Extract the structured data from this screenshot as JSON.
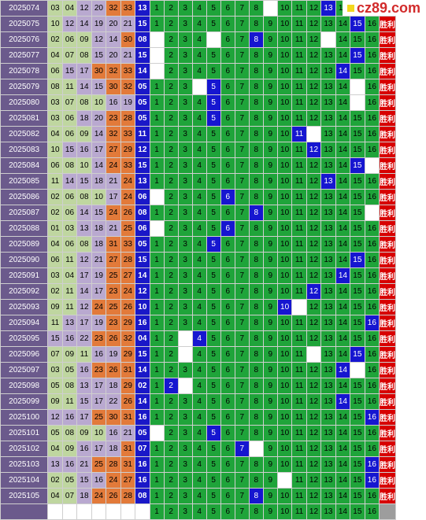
{
  "logo": {
    "text": "cz89.com"
  },
  "colors": {
    "period_bg": "#6b5a8c",
    "grid_green": "#1fa43a",
    "hit_blue": "#1616d0",
    "result_red": "#d70000"
  },
  "columns": [
    "1",
    "2",
    "3",
    "4",
    "5",
    "6",
    "7",
    "8",
    "9",
    "10",
    "11",
    "12",
    "13",
    "14",
    "15",
    "16"
  ],
  "rows": [
    {
      "period": "2025074",
      "nums": [
        "03",
        "04",
        "12",
        "20",
        "32",
        "33"
      ],
      "blue": "13",
      "hit": 13,
      "result": "胜利"
    },
    {
      "period": "2025075",
      "nums": [
        "10",
        "12",
        "14",
        "19",
        "20",
        "21"
      ],
      "blue": "15",
      "hit": 15,
      "result": "胜利"
    },
    {
      "period": "2025076",
      "nums": [
        "02",
        "06",
        "09",
        "12",
        "14",
        "30"
      ],
      "blue": "08",
      "hit": 8,
      "result": "胜利"
    },
    {
      "period": "2025077",
      "nums": [
        "04",
        "07",
        "08",
        "15",
        "20",
        "21"
      ],
      "blue": "15",
      "hit": 15,
      "result": "胜利"
    },
    {
      "period": "2025078",
      "nums": [
        "06",
        "15",
        "17",
        "30",
        "32",
        "33"
      ],
      "blue": "14",
      "hit": 14,
      "result": "胜利"
    },
    {
      "period": "2025079",
      "nums": [
        "08",
        "11",
        "14",
        "15",
        "30",
        "32"
      ],
      "blue": "05",
      "hit": 5,
      "result": "胜利"
    },
    {
      "period": "2025080",
      "nums": [
        "03",
        "07",
        "08",
        "10",
        "16",
        "19"
      ],
      "blue": "05",
      "hit": 5,
      "result": "胜利"
    },
    {
      "period": "2025081",
      "nums": [
        "03",
        "06",
        "18",
        "20",
        "23",
        "28"
      ],
      "blue": "05",
      "hit": 5,
      "result": "胜利"
    },
    {
      "period": "2025082",
      "nums": [
        "04",
        "06",
        "09",
        "14",
        "32",
        "33"
      ],
      "blue": "11",
      "hit": 11,
      "result": "胜利"
    },
    {
      "period": "2025083",
      "nums": [
        "10",
        "15",
        "16",
        "17",
        "27",
        "29"
      ],
      "blue": "12",
      "hit": 12,
      "result": "胜利"
    },
    {
      "period": "2025084",
      "nums": [
        "06",
        "08",
        "10",
        "14",
        "24",
        "33"
      ],
      "blue": "15",
      "hit": 15,
      "result": "胜利"
    },
    {
      "period": "2025085",
      "nums": [
        "11",
        "14",
        "15",
        "18",
        "21",
        "24"
      ],
      "blue": "13",
      "hit": 13,
      "result": "胜利"
    },
    {
      "period": "2025086",
      "nums": [
        "02",
        "06",
        "08",
        "10",
        "17",
        "24"
      ],
      "blue": "06",
      "hit": 6,
      "result": "胜利"
    },
    {
      "period": "2025087",
      "nums": [
        "02",
        "06",
        "14",
        "15",
        "24",
        "26"
      ],
      "blue": "08",
      "hit": 8,
      "result": "胜利"
    },
    {
      "period": "2025088",
      "nums": [
        "01",
        "03",
        "13",
        "18",
        "21",
        "25"
      ],
      "blue": "06",
      "hit": 6,
      "result": "胜利"
    },
    {
      "period": "2025089",
      "nums": [
        "04",
        "06",
        "08",
        "18",
        "31",
        "33"
      ],
      "blue": "05",
      "hit": 5,
      "result": "胜利"
    },
    {
      "period": "2025090",
      "nums": [
        "06",
        "11",
        "12",
        "21",
        "27",
        "28"
      ],
      "blue": "15",
      "hit": 15,
      "result": "胜利"
    },
    {
      "period": "2025091",
      "nums": [
        "03",
        "04",
        "17",
        "19",
        "25",
        "27"
      ],
      "blue": "14",
      "hit": 14,
      "result": "胜利"
    },
    {
      "period": "2025092",
      "nums": [
        "02",
        "11",
        "14",
        "17",
        "23",
        "24"
      ],
      "blue": "12",
      "hit": 12,
      "result": "胜利"
    },
    {
      "period": "2025093",
      "nums": [
        "09",
        "11",
        "12",
        "24",
        "25",
        "26"
      ],
      "blue": "10",
      "hit": 10,
      "result": "胜利"
    },
    {
      "period": "2025094",
      "nums": [
        "11",
        "13",
        "17",
        "19",
        "23",
        "29"
      ],
      "blue": "16",
      "hit": 16,
      "result": "胜利"
    },
    {
      "period": "2025095",
      "nums": [
        "15",
        "16",
        "22",
        "23",
        "26",
        "32"
      ],
      "blue": "04",
      "hit": 4,
      "result": "胜利"
    },
    {
      "period": "2025096",
      "nums": [
        "07",
        "09",
        "11",
        "16",
        "19",
        "29"
      ],
      "blue": "15",
      "hit": 15,
      "result": "胜利"
    },
    {
      "period": "2025097",
      "nums": [
        "03",
        "05",
        "16",
        "23",
        "26",
        "31"
      ],
      "blue": "14",
      "hit": 14,
      "result": "胜利"
    },
    {
      "period": "2025098",
      "nums": [
        "05",
        "08",
        "13",
        "17",
        "18",
        "29"
      ],
      "blue": "02",
      "hit": 2,
      "result": "胜利"
    },
    {
      "period": "2025099",
      "nums": [
        "09",
        "11",
        "15",
        "17",
        "22",
        "26"
      ],
      "blue": "14",
      "hit": 14,
      "result": "胜利"
    },
    {
      "period": "2025100",
      "nums": [
        "12",
        "16",
        "17",
        "25",
        "30",
        "31"
      ],
      "blue": "16",
      "hit": 16,
      "result": "胜利"
    },
    {
      "period": "2025101",
      "nums": [
        "05",
        "08",
        "09",
        "10",
        "16",
        "21"
      ],
      "blue": "05",
      "hit": 5,
      "result": "胜利"
    },
    {
      "period": "2025102",
      "nums": [
        "04",
        "09",
        "16",
        "17",
        "18",
        "31"
      ],
      "blue": "07",
      "hit": 7,
      "result": "胜利"
    },
    {
      "period": "2025103",
      "nums": [
        "13",
        "16",
        "21",
        "25",
        "28",
        "31"
      ],
      "blue": "16",
      "hit": 16,
      "result": "胜利"
    },
    {
      "period": "2025104",
      "nums": [
        "02",
        "05",
        "15",
        "16",
        "24",
        "27"
      ],
      "blue": "16",
      "hit": 16,
      "result": "胜利"
    },
    {
      "period": "2025105",
      "nums": [
        "04",
        "07",
        "18",
        "24",
        "26",
        "28"
      ],
      "blue": "08",
      "hit": 8,
      "result": "胜利"
    }
  ],
  "empties": {
    "2025074": [
      9
    ],
    "2025076": [
      1,
      5,
      13
    ],
    "2025077": [
      1
    ],
    "2025078": [
      1
    ],
    "2025079": [
      4,
      15
    ],
    "2025080": [
      15
    ],
    "2025082": [
      12
    ],
    "2025084": [
      16
    ],
    "2025086": [
      1
    ],
    "2025087": [
      16
    ],
    "2025088": [
      1
    ],
    "2025093": [
      11
    ],
    "2025095": [
      3
    ],
    "2025096": [
      3,
      12
    ],
    "2025097": [
      15
    ],
    "2025098": [
      3
    ],
    "2025101": [
      1
    ],
    "2025102": [
      8
    ],
    "2025104": [
      10
    ]
  }
}
